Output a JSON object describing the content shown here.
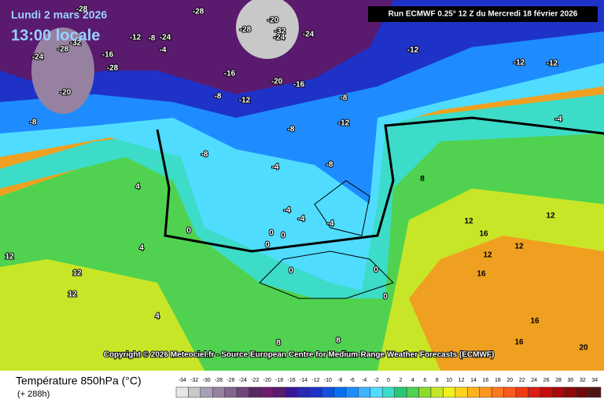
{
  "header": {
    "date": "Lundi 2 mars 2026",
    "time": "13:00 locale",
    "run": "Run ECMWF 0.25° 12 Z du Mercredi 18 février 2026"
  },
  "copyright": "Copyright © 2026 Meteociel.fr - Source European Centre for Medium-Range Weather Forecasts (ECMWF)",
  "legend": {
    "title": "Température 850hPa (°C)",
    "lead": "(+ 288h)",
    "values": [
      "-34",
      "-32",
      "-30",
      "-28",
      "-26",
      "-24",
      "-22",
      "-20",
      "-18",
      "-16",
      "-14",
      "-12",
      "-10",
      "-8",
      "-6",
      "-4",
      "-2",
      "0",
      "2",
      "4",
      "6",
      "8",
      "10",
      "12",
      "14",
      "16",
      "18",
      "20",
      "22",
      "24",
      "26",
      "28",
      "30",
      "32",
      "34"
    ],
    "colors": [
      "#e6e6e6",
      "#c8c8c8",
      "#aaa0b4",
      "#9682a0",
      "#82648c",
      "#6e4678",
      "#5a2864",
      "#6e1e6e",
      "#5a1a6e",
      "#3c1496",
      "#2828b4",
      "#1e32c8",
      "#1450dc",
      "#0a6ef0",
      "#1e8cff",
      "#3cb4ff",
      "#50dcff",
      "#3cdcc8",
      "#28c878",
      "#50d250",
      "#8cdc28",
      "#c8e628",
      "#f0f01e",
      "#ffd21e",
      "#ffb41e",
      "#ff961e",
      "#ff781e",
      "#ff5a1e",
      "#f03c14",
      "#dc1e14",
      "#c80a0a",
      "#aa0a0a",
      "#8c0a0a",
      "#6e0a0a",
      "#501414"
    ]
  },
  "map_labels": [
    "-28",
    "-28",
    "-32",
    "-24",
    "-12",
    "-8",
    "-24",
    "-16",
    "-12",
    "-12",
    "-4",
    "-24",
    "-28",
    "-32",
    "-24",
    "-28",
    "-20",
    "-28",
    "-20",
    "-20",
    "-16",
    "-16",
    "-8",
    "-12",
    "-8",
    "-8",
    "-12",
    "-8",
    "-4",
    "-8",
    "-8",
    "0",
    "-4",
    "-4",
    "-4",
    "0",
    "0",
    "0",
    "0",
    "4",
    "4",
    "4",
    "8",
    "8",
    "12",
    "12",
    "12",
    "12",
    "12",
    "16",
    "16",
    "16",
    "20",
    "12",
    "-12",
    "-4",
    "8",
    "12",
    "16",
    "0",
    "0"
  ]
}
